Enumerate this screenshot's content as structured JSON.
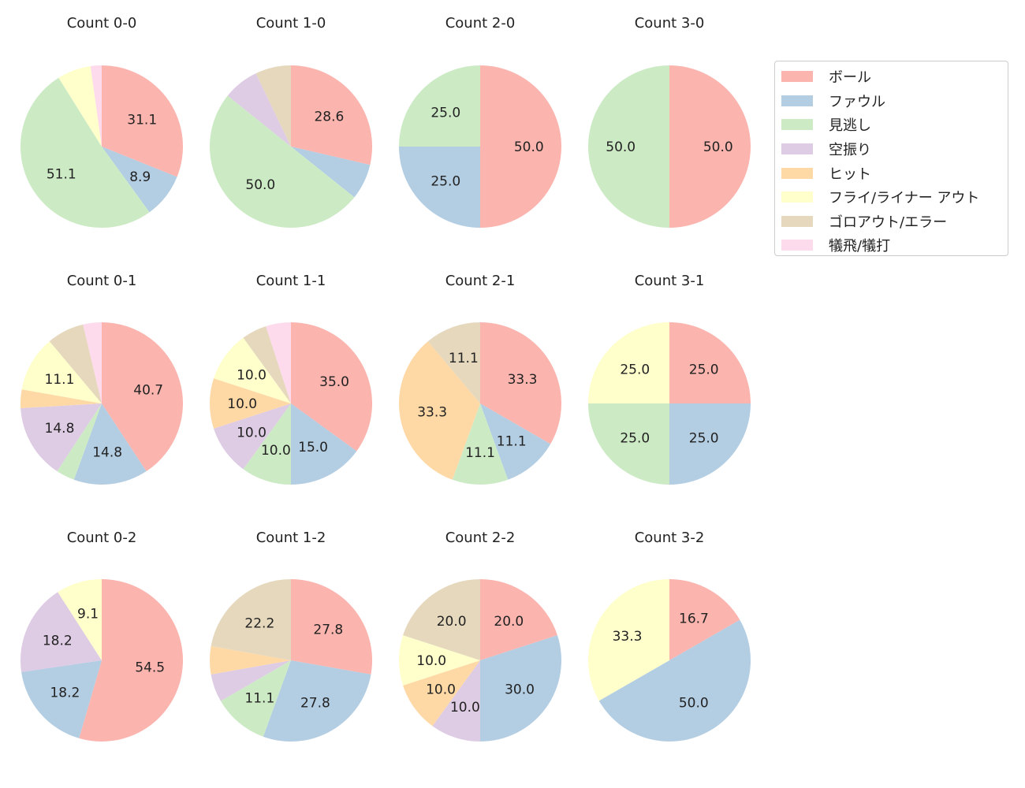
{
  "chart_data": {
    "type": "pie",
    "categories": [
      "ボール",
      "ファウル",
      "見逃し",
      "空振り",
      "ヒット",
      "フライ/ライナー アウト",
      "ゴロアウト/エラー",
      "犠飛/犠打"
    ],
    "colors": [
      "#fbb4ae",
      "#b3cde3",
      "#ccebc5",
      "#decbe4",
      "#fed9a6",
      "#ffffcc",
      "#e5d8bd",
      "#fddaec"
    ],
    "legend_position": "top-right",
    "direction": "clockwise from top",
    "charts": [
      {
        "title": "Count 0-0",
        "values": [
          31.1,
          8.9,
          51.1,
          0,
          0,
          6.7,
          0,
          2.2
        ]
      },
      {
        "title": "Count 1-0",
        "values": [
          28.6,
          7.1,
          50.0,
          7.1,
          0,
          0,
          7.1,
          0
        ]
      },
      {
        "title": "Count 2-0",
        "values": [
          50.0,
          25.0,
          25.0,
          0,
          0,
          0,
          0,
          0
        ]
      },
      {
        "title": "Count 3-0",
        "values": [
          50.0,
          0,
          50.0,
          0,
          0,
          0,
          0,
          0
        ]
      },
      {
        "title": "Count 0-1",
        "values": [
          40.7,
          14.8,
          3.7,
          14.8,
          3.7,
          11.1,
          7.4,
          3.7
        ]
      },
      {
        "title": "Count 1-1",
        "values": [
          35.0,
          15.0,
          10.0,
          10.0,
          10.0,
          10.0,
          5.0,
          5.0
        ]
      },
      {
        "title": "Count 2-1",
        "values": [
          33.3,
          11.1,
          11.1,
          0,
          33.3,
          0,
          11.1,
          0
        ]
      },
      {
        "title": "Count 3-1",
        "values": [
          25.0,
          25.0,
          25.0,
          0,
          0,
          25.0,
          0,
          0
        ]
      },
      {
        "title": "Count 0-2",
        "values": [
          54.5,
          18.2,
          0,
          18.2,
          0,
          9.1,
          0,
          0
        ]
      },
      {
        "title": "Count 1-2",
        "values": [
          27.8,
          27.8,
          11.1,
          5.6,
          5.6,
          0,
          22.2,
          0
        ]
      },
      {
        "title": "Count 2-2",
        "values": [
          20.0,
          30.0,
          0,
          10.0,
          10.0,
          10.0,
          20.0,
          0
        ]
      },
      {
        "title": "Count 3-2",
        "values": [
          16.7,
          50.0,
          0,
          0,
          0,
          33.3,
          0,
          0
        ]
      }
    ]
  }
}
